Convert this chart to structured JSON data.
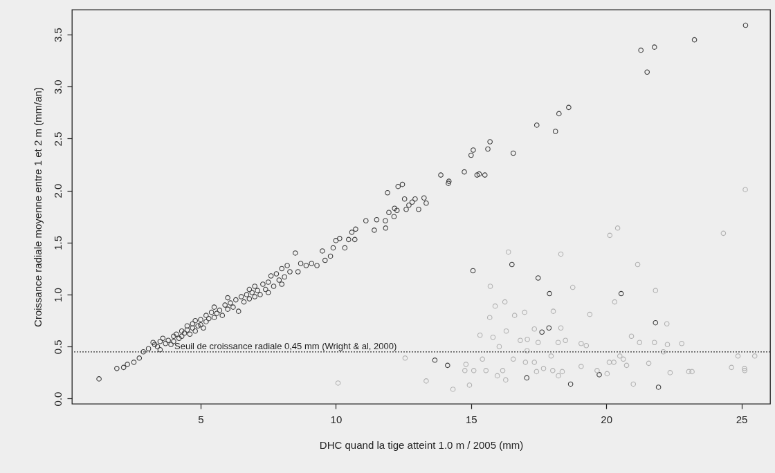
{
  "chart_data": {
    "type": "scatter",
    "xlabel": "DHC quand la tige atteint 1.0 m / 2005 (mm)",
    "ylabel": "Croissance radiale moyenne entre 1 et 2 m (mm/an)",
    "xlim": [
      0.24,
      26.06
    ],
    "ylim": [
      -0.05,
      3.74
    ],
    "xticks": [
      5,
      10,
      15,
      20,
      25
    ],
    "yticks": [
      {
        "value": 0,
        "label": "0.0"
      },
      {
        "value": 0.5,
        "label": "0.5"
      },
      {
        "value": 1,
        "label": "1.0"
      },
      {
        "value": 1.5,
        "label": "1.5"
      },
      {
        "value": 2,
        "label": "2.0"
      },
      {
        "value": 2.5,
        "label": "2.5"
      },
      {
        "value": 3,
        "label": "3.0"
      },
      {
        "value": 3.5,
        "label": "3.5"
      }
    ],
    "grid": false,
    "marker": "circle",
    "ref_lines": [
      {
        "axis": "y",
        "value": 0.45,
        "label": "Seuil de croissance radiale 0,45 mm (Wright & al, 2000)",
        "color": "#333333",
        "line_style": "dotted"
      }
    ],
    "series": [
      {
        "color": "#3a3a3a",
        "x": [
          1.24,
          1.9,
          2.15,
          2.29,
          2.53,
          2.73,
          2.88,
          3.07,
          3.24,
          3.3,
          3.4,
          3.5,
          3.5,
          3.6,
          3.7,
          3.8,
          3.9,
          4.0,
          4.0,
          4.1,
          4.2,
          4.3,
          4.3,
          4.4,
          4.5,
          4.5,
          4.6,
          4.7,
          4.7,
          4.8,
          4.8,
          4.9,
          5.0,
          5.0,
          5.1,
          5.2,
          5.2,
          5.3,
          5.4,
          5.5,
          5.5,
          5.6,
          5.7,
          5.8,
          5.9,
          6.0,
          6.0,
          6.1,
          6.2,
          6.3,
          6.4,
          6.5,
          6.6,
          6.7,
          6.8,
          6.8,
          6.9,
          7.0,
          7.0,
          7.1,
          7.2,
          7.3,
          7.4,
          7.5,
          7.5,
          7.6,
          7.7,
          7.8,
          7.9,
          8.0,
          8.0,
          8.1,
          8.2,
          8.3,
          8.5,
          8.6,
          8.7,
          8.9,
          9.1,
          9.3,
          9.5,
          9.6,
          9.8,
          9.9,
          10.0,
          10.14,
          10.33,
          10.47,
          10.59,
          10.7,
          10.73,
          11.11,
          11.42,
          11.51,
          11.84,
          11.83,
          11.91,
          11.96,
          12.15,
          12.17,
          12.26,
          12.3,
          12.46,
          12.54,
          12.6,
          12.7,
          12.82,
          12.93,
          13.06,
          13.26,
          13.34,
          13.88,
          14.16,
          14.18,
          14.75,
          15.0,
          15.08,
          15.22,
          15.3,
          15.51,
          15.62,
          15.7,
          16.56,
          17.43,
          18.12,
          18.25,
          18.61,
          21.28,
          21.51,
          21.78,
          23.26,
          25.15,
          15.07,
          16.51,
          17.48,
          17.9,
          17.88,
          17.62,
          13.66,
          14.13,
          17.06,
          18.68,
          19.74,
          20.55,
          21.82,
          21.93
        ],
        "values": [
          0.19,
          0.29,
          0.3,
          0.33,
          0.35,
          0.39,
          0.45,
          0.48,
          0.54,
          0.52,
          0.5,
          0.55,
          0.47,
          0.58,
          0.53,
          0.56,
          0.52,
          0.6,
          0.55,
          0.62,
          0.58,
          0.65,
          0.6,
          0.63,
          0.7,
          0.66,
          0.62,
          0.72,
          0.68,
          0.75,
          0.65,
          0.7,
          0.76,
          0.71,
          0.68,
          0.8,
          0.74,
          0.77,
          0.83,
          0.78,
          0.88,
          0.82,
          0.85,
          0.8,
          0.9,
          0.97,
          0.86,
          0.92,
          0.88,
          0.95,
          0.84,
          0.98,
          0.93,
          1.0,
          1.05,
          0.96,
          1.02,
          1.08,
          0.98,
          1.04,
          1.0,
          1.1,
          1.05,
          1.12,
          1.02,
          1.18,
          1.08,
          1.2,
          1.14,
          1.25,
          1.1,
          1.17,
          1.28,
          1.22,
          1.4,
          1.22,
          1.3,
          1.28,
          1.3,
          1.28,
          1.42,
          1.33,
          1.37,
          1.45,
          1.52,
          1.54,
          1.45,
          1.53,
          1.6,
          1.53,
          1.63,
          1.71,
          1.62,
          1.72,
          1.64,
          1.71,
          1.98,
          1.79,
          1.75,
          1.83,
          1.81,
          2.04,
          2.06,
          1.92,
          1.82,
          1.86,
          1.89,
          1.92,
          1.82,
          1.93,
          1.88,
          2.15,
          2.07,
          2.09,
          2.18,
          2.34,
          2.39,
          2.15,
          2.16,
          2.15,
          2.4,
          2.47,
          2.36,
          2.63,
          2.57,
          2.74,
          2.8,
          3.35,
          3.14,
          3.38,
          3.45,
          3.59,
          1.23,
          1.29,
          1.16,
          1.01,
          0.68,
          0.64,
          0.37,
          0.32,
          0.2,
          0.14,
          0.23,
          1.01,
          0.73,
          0.11
        ]
      },
      {
        "color": "#b0b0b0",
        "x": [
          10.08,
          12.56,
          13.34,
          14.33,
          14.81,
          14.77,
          15.1,
          14.94,
          15.33,
          15.42,
          15.55,
          15.69,
          15.71,
          15.81,
          15.89,
          16.04,
          15.97,
          16.17,
          16.28,
          16.25,
          16.3,
          16.38,
          16.56,
          16.61,
          16.82,
          16.98,
          17.01,
          17.08,
          17.07,
          17.34,
          17.34,
          17.42,
          17.48,
          17.68,
          17.96,
          18.04,
          18.02,
          18.22,
          18.32,
          18.32,
          18.23,
          18.37,
          18.49,
          18.76,
          19.07,
          19.07,
          19.26,
          19.39,
          20.13,
          20.42,
          19.66,
          20.03,
          20.11,
          20.28,
          20.31,
          20.5,
          20.63,
          20.75,
          20.93,
          21.16,
          21.23,
          21.0,
          21.57,
          21.78,
          21.82,
          22.11,
          22.24,
          22.26,
          22.36,
          22.79,
          23.05,
          23.17,
          24.33,
          24.63,
          25.11,
          25.12,
          25.14,
          24.87,
          25.49
        ],
        "values": [
          0.15,
          0.39,
          0.17,
          0.09,
          0.33,
          0.27,
          0.27,
          0.13,
          0.61,
          0.38,
          0.27,
          0.78,
          1.08,
          0.59,
          0.89,
          0.5,
          0.22,
          0.27,
          0.18,
          0.93,
          0.65,
          1.41,
          0.38,
          0.8,
          0.56,
          0.83,
          0.35,
          0.57,
          0.46,
          0.67,
          0.35,
          0.26,
          0.54,
          0.29,
          0.41,
          0.84,
          0.27,
          0.54,
          1.39,
          0.68,
          0.22,
          0.26,
          0.56,
          1.07,
          0.31,
          0.53,
          0.51,
          0.81,
          1.57,
          1.64,
          0.27,
          0.24,
          0.35,
          0.35,
          0.93,
          0.41,
          0.38,
          0.32,
          0.6,
          1.29,
          0.54,
          0.14,
          0.34,
          0.54,
          1.04,
          0.45,
          0.72,
          0.52,
          0.25,
          0.53,
          0.26,
          0.26,
          1.59,
          0.3,
          0.29,
          0.27,
          2.01,
          0.41,
          0.41
        ]
      }
    ]
  }
}
